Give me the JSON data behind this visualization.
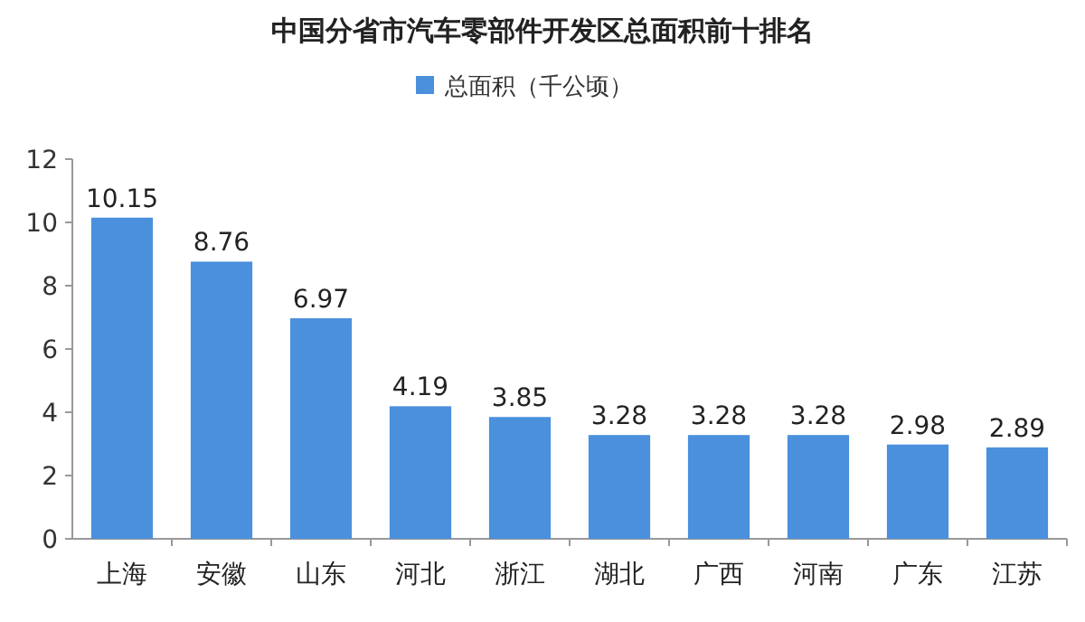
{
  "chart_data": {
    "type": "bar",
    "title": "中国分省市汽车零部件开发区总面积前十排名",
    "categories": [
      "上海",
      "安徽",
      "山东",
      "河北",
      "浙江",
      "湖北",
      "广西",
      "河南",
      "广东",
      "江苏"
    ],
    "series": [
      {
        "name": "总面积（千公顷）",
        "color": "#4a90dd",
        "values": [
          10.15,
          8.76,
          6.97,
          4.19,
          3.85,
          3.28,
          3.28,
          3.28,
          2.98,
          2.89
        ]
      }
    ],
    "ylim": [
      0,
      12
    ],
    "yticks": [
      0,
      2,
      4,
      6,
      8,
      10,
      12
    ],
    "data_labels": true,
    "legend": "top"
  }
}
